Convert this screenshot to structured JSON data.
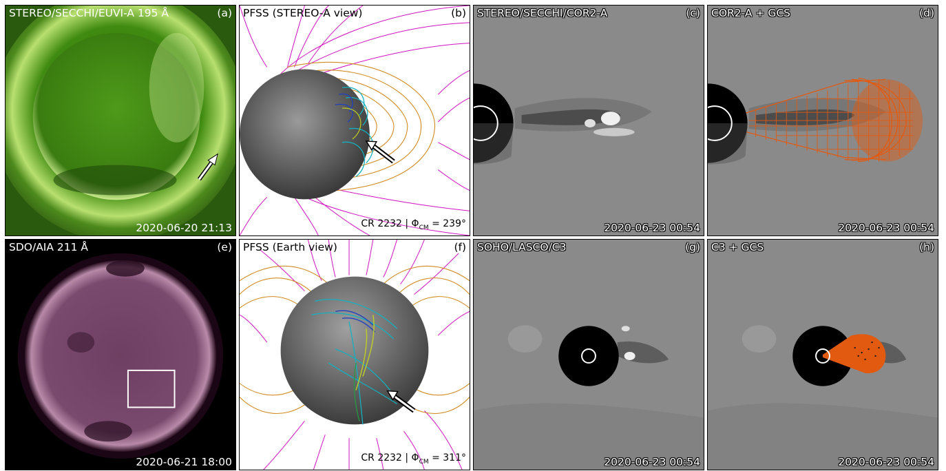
{
  "panels": [
    {
      "id": "a",
      "title": "STEREO/SECCHI/EUVI-A 195 Å",
      "label": "(a)",
      "timestamp": "2020-06-20 21:13"
    },
    {
      "id": "b",
      "title": "PFSS (STEREO-A view)",
      "label": "(b)",
      "cr_prefix": "CR 2232 | Φ",
      "cr_sub": "CM",
      "cr_value": " = 239°"
    },
    {
      "id": "c",
      "title": "STEREO/SECCHI/COR2-A",
      "label": "(c)",
      "timestamp": "2020-06-23 00:54"
    },
    {
      "id": "d",
      "title": "COR2-A + GCS",
      "label": "(d)",
      "timestamp": "2020-06-23 00:54"
    },
    {
      "id": "e",
      "title": "SDO/AIA 211 Å",
      "label": "(e)",
      "timestamp": "2020-06-21 18:00"
    },
    {
      "id": "f",
      "title": "PFSS (Earth view)",
      "label": "(f)",
      "cr_prefix": "CR 2232 | Φ",
      "cr_sub": "CM",
      "cr_value": " = 311°"
    },
    {
      "id": "g",
      "title": "SOHO/LASCO/C3",
      "label": "(g)",
      "timestamp": "2020-06-23 00:54"
    },
    {
      "id": "h",
      "title": "C3 + GCS",
      "label": "(h)",
      "timestamp": "2020-06-23 00:54"
    }
  ],
  "colors": {
    "euvi_green": "#3f8a10",
    "aia_purple": "#7a4a6e",
    "open_field": "#d010c0",
    "closed_field": "#d08a20",
    "gcs_orange": "#e25a10",
    "coronagraph_gray": "#8a8a8a"
  }
}
